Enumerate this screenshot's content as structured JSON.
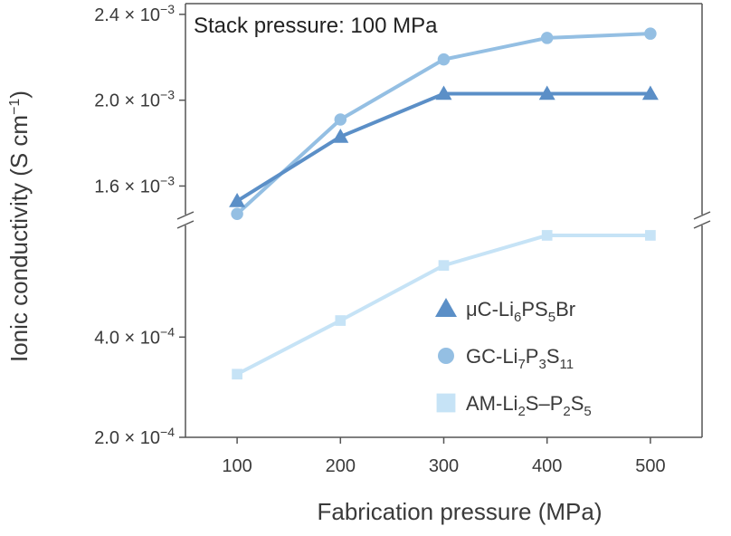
{
  "chart_data": {
    "type": "line",
    "title": "",
    "annotation": "Stack pressure: 100 MPa",
    "xlabel": "Fabrication pressure (MPa)",
    "ylabel": {
      "main": "Ionic conductivity (S cm",
      "sup": "−1",
      "tail": ")"
    },
    "x": [
      100,
      200,
      300,
      400,
      500
    ],
    "xlim": [
      50,
      550
    ],
    "x_ticks": [
      "100",
      "200",
      "300",
      "400",
      "500"
    ],
    "y_axis_break": true,
    "upper_ylim": [
      0.00145,
      0.00245
    ],
    "lower_ylim": [
      0.0002,
      0.00063
    ],
    "y_ticks_upper": [
      {
        "value": 0.0024,
        "label": "2.4 × 10",
        "exp": "−3"
      },
      {
        "value": 0.002,
        "label": "2.0 × 10",
        "exp": "−3"
      },
      {
        "value": 0.0016,
        "label": "1.6 × 10",
        "exp": "−3"
      }
    ],
    "y_ticks_lower": [
      {
        "value": 0.0004,
        "label": "4.0 × 10",
        "exp": "−4"
      },
      {
        "value": 0.0002,
        "label": "2.0 × 10",
        "exp": "−4"
      }
    ],
    "legend_position": "bottom-right",
    "series": [
      {
        "name": "μC-Li6PS5Br",
        "label_parts": [
          [
            "μC-Li",
            ""
          ],
          [
            "6",
            "sub"
          ],
          [
            "PS",
            ""
          ],
          [
            "5",
            "sub"
          ],
          [
            "Br",
            ""
          ]
        ],
        "marker": "triangle",
        "color": "#5b8fc7",
        "panel": "upper",
        "values": [
          0.00153,
          0.00183,
          0.00203,
          0.00203,
          0.00203
        ]
      },
      {
        "name": "GC-Li7P3S11",
        "label_parts": [
          [
            "GC-Li",
            ""
          ],
          [
            "7",
            "sub"
          ],
          [
            "P",
            ""
          ],
          [
            "3",
            "sub"
          ],
          [
            "S",
            ""
          ],
          [
            "11",
            "sub"
          ]
        ],
        "marker": "circle",
        "color": "#94bfe3",
        "panel": "upper",
        "values": [
          0.00147,
          0.00191,
          0.00219,
          0.00229,
          0.00231
        ]
      },
      {
        "name": "AM-Li2S–P2S5",
        "label_parts": [
          [
            "AM-Li",
            ""
          ],
          [
            "2",
            "sub"
          ],
          [
            "S–P",
            ""
          ],
          [
            "2",
            "sub"
          ],
          [
            "S",
            ""
          ],
          [
            "5",
            "sub"
          ]
        ],
        "marker": "square",
        "color": "#c6e3f6",
        "panel": "lower",
        "values": [
          0.000326,
          0.000433,
          0.000543,
          0.000603,
          0.000603
        ]
      }
    ]
  }
}
